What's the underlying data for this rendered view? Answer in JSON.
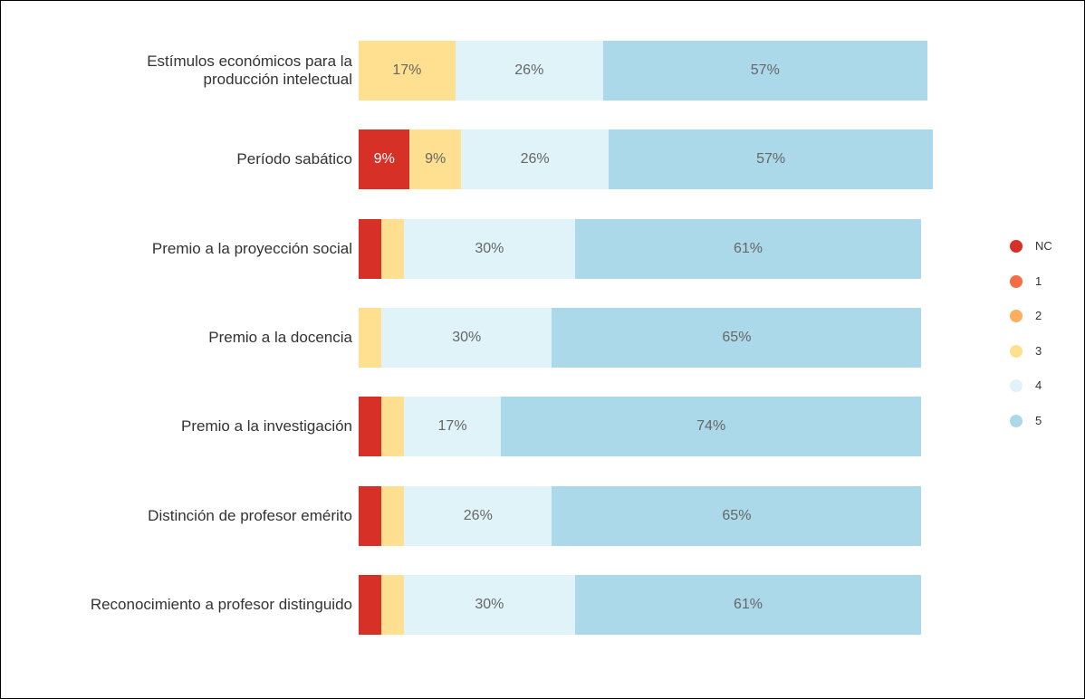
{
  "chart_data": {
    "type": "stacked-bar-horizontal",
    "categories": [
      "Estímulos económicos para la producción intelectual",
      "Período sabático",
      "Premio a la proyección social",
      "Premio a la docencia",
      "Premio a la investigación",
      "Distinción de profesor emérito",
      "Reconocimiento a profesor distinguido"
    ],
    "series": [
      {
        "name": "NC",
        "color": "#d73027",
        "values": [
          0,
          9,
          4,
          0,
          4,
          4,
          4
        ],
        "value_labels": [
          null,
          "9%",
          null,
          null,
          null,
          null,
          null
        ]
      },
      {
        "name": "1",
        "color": "#f46d43",
        "values": [
          0,
          0,
          0,
          0,
          0,
          0,
          0
        ]
      },
      {
        "name": "2",
        "color": "#fdae61",
        "values": [
          0,
          0,
          0,
          0,
          0,
          0,
          0
        ]
      },
      {
        "name": "3",
        "color": "#fee090",
        "values": [
          17,
          9,
          4,
          4,
          4,
          4,
          4
        ],
        "value_labels": [
          "17%",
          "9%",
          null,
          null,
          null,
          null,
          null
        ]
      },
      {
        "name": "4",
        "color": "#e0f3f8",
        "values": [
          26,
          26,
          30,
          30,
          17,
          26,
          30
        ],
        "value_labels": [
          "26%",
          "26%",
          "30%",
          "30%",
          "17%",
          "26%",
          "30%"
        ]
      },
      {
        "name": "5",
        "color": "#abd9e9",
        "values": [
          57,
          57,
          61,
          65,
          74,
          65,
          61
        ],
        "value_labels": [
          "57%",
          "57%",
          "61%",
          "65%",
          "74%",
          "65%",
          "61%"
        ]
      }
    ],
    "legend": "right"
  }
}
